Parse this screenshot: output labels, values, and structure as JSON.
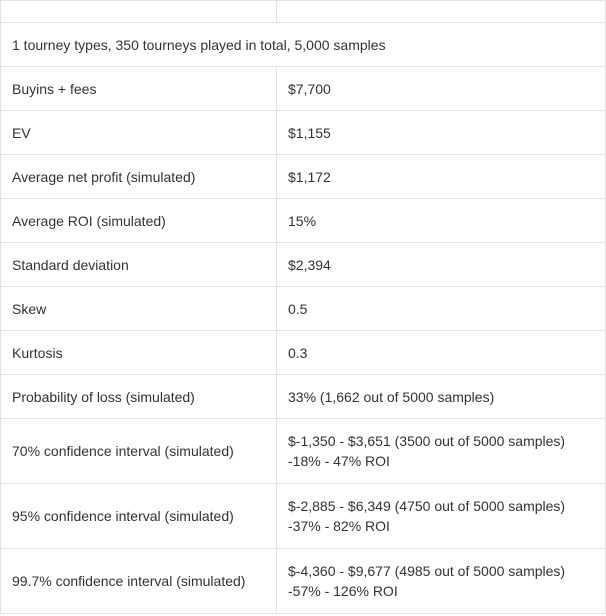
{
  "summary": "1 tourney types, 350 tourneys played in total, 5,000 samples",
  "rows": [
    {
      "label": "Buyins + fees",
      "value": "$7,700"
    },
    {
      "label": "EV",
      "value": "$1,155"
    },
    {
      "label": "Average net profit (simulated)",
      "value": "$1,172"
    },
    {
      "label": "Average ROI (simulated)",
      "value": "15%"
    },
    {
      "label": "Standard deviation",
      "value": "$2,394"
    },
    {
      "label": "Skew",
      "value": "0.5"
    },
    {
      "label": "Kurtosis",
      "value": "0.3"
    },
    {
      "label": "Probability of loss (simulated)",
      "value": "33% (1,662 out of 5000 samples)"
    }
  ],
  "intervals": [
    {
      "label": "70% confidence interval (simulated)",
      "range": "$-1,350 - $3,651 (3500 out of 5000 samples)",
      "roi": "-18% - 47% ROI"
    },
    {
      "label": "95% confidence interval (simulated)",
      "range": "$-2,885 - $6,349 (4750 out of 5000 samples)",
      "roi": "-37% - 82% ROI"
    },
    {
      "label": "99.7% confidence interval (simulated)",
      "range": "$-4,360 - $9,677 (4985 out of 5000 samples)",
      "roi": "-57% - 126% ROI"
    }
  ]
}
